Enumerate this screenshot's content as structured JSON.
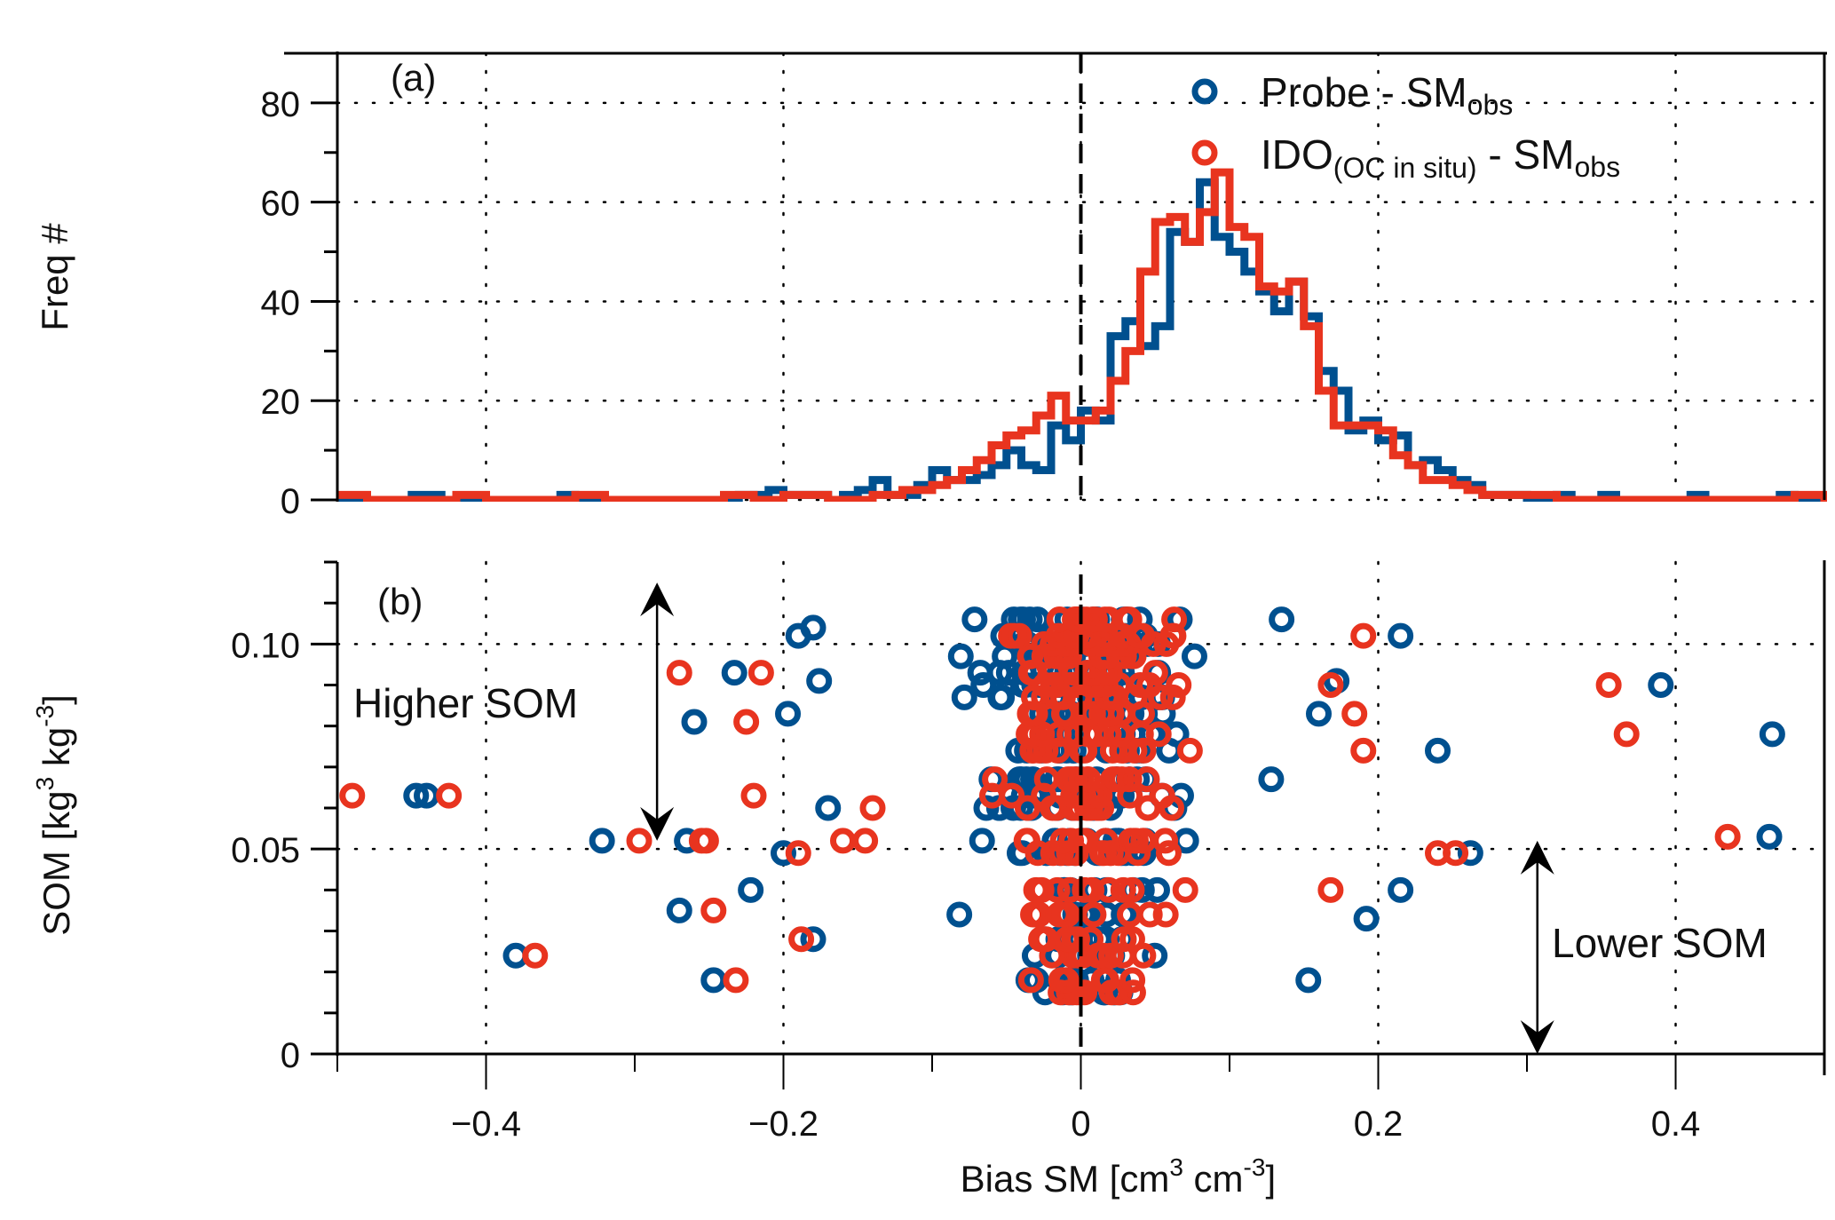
{
  "chart_data": [
    {
      "panel": "a",
      "type": "line",
      "subtype": "step-histogram",
      "panel_label": "(a)",
      "ylabel": "Freq #",
      "xlabel": "",
      "xlim": [
        -0.5,
        0.5
      ],
      "ylim": [
        0,
        90
      ],
      "yticks": [
        0,
        20,
        40,
        60,
        80
      ],
      "ytick_labels": [
        "0",
        "20",
        "40",
        "60",
        "80"
      ],
      "xticks": [
        -0.4,
        -0.2,
        0,
        0.2,
        0.4
      ],
      "grid": "dotted",
      "reference_line": {
        "x": 0,
        "style": "dashed",
        "color": "#000000"
      },
      "legend": {
        "placement": "top-right",
        "entries": [
          {
            "main": "Probe - SM",
            "sub": "obs",
            "sub_prefix": "",
            "color": "#00508f"
          },
          {
            "main": "IDO",
            "sub_prefix": "(OC in situ)",
            "tail": " - SM",
            "sub": "obs",
            "color": "#e8341f"
          }
        ]
      },
      "bin_width": 0.01,
      "bin_start": -0.5,
      "series": [
        {
          "name": "Probe - SMobs",
          "color": "#00508f",
          "counts": [
            0,
            0,
            0,
            0,
            0,
            1,
            1,
            0,
            0,
            0,
            0,
            0,
            0,
            0,
            0,
            1,
            0,
            0,
            0,
            0,
            0,
            0,
            0,
            0,
            0,
            0,
            0,
            1,
            1,
            2,
            1,
            1,
            1,
            0,
            1,
            2,
            4,
            1,
            1,
            3,
            6,
            4,
            4,
            5,
            7,
            10,
            7,
            6,
            15,
            12,
            18,
            16,
            33,
            36,
            31,
            35,
            54,
            52,
            64,
            53,
            50,
            46,
            42,
            38,
            44,
            37,
            26,
            22,
            14,
            16,
            12,
            13,
            7,
            8,
            6,
            4,
            3,
            1,
            1,
            1,
            0,
            0,
            1,
            0,
            0,
            1,
            0,
            0,
            0,
            0,
            0,
            1,
            0,
            0,
            0,
            0,
            0,
            1,
            0,
            0,
            0,
            0,
            0,
            0,
            0,
            1,
            1,
            0,
            0,
            0
          ],
          "note": "approximate counts read from gridlines"
        },
        {
          "name": "IDO(OC in situ) - SMobs",
          "color": "#e8341f",
          "counts": [
            1,
            1,
            0,
            0,
            0,
            0,
            0,
            0,
            1,
            1,
            0,
            0,
            0,
            0,
            0,
            0,
            1,
            1,
            0,
            0,
            0,
            0,
            0,
            0,
            0,
            0,
            1,
            1,
            0,
            0,
            1,
            1,
            1,
            0,
            0,
            0,
            1,
            1,
            2,
            2,
            3,
            4,
            6,
            8,
            11,
            13,
            14,
            17,
            21,
            16,
            16,
            18,
            24,
            30,
            46,
            56,
            57,
            52,
            58,
            66,
            55,
            53,
            43,
            42,
            44,
            35,
            22,
            15,
            15,
            15,
            14,
            9,
            7,
            4,
            4,
            3,
            2,
            1,
            1,
            1,
            1,
            1,
            0,
            0,
            0,
            0,
            0,
            0,
            0,
            0,
            0,
            0,
            0,
            0,
            0,
            0,
            0,
            0,
            1,
            1,
            0,
            0,
            0,
            1,
            1,
            0,
            0,
            0,
            0,
            0
          ],
          "note": "approximate counts read from gridlines"
        }
      ]
    },
    {
      "panel": "b",
      "type": "scatter",
      "panel_label": "(b)",
      "xlabel": "Bias SM [cm3 cm-3]",
      "xlabel_parts": {
        "main": "Bias SM [cm",
        "sup1": "3",
        "mid": " cm",
        "sup2": "-3",
        "end": "]"
      },
      "ylabel": "SOM [kg3 kg-3]",
      "ylabel_parts": {
        "main": "SOM [kg",
        "sup1": "3",
        "mid": " kg",
        "sup2": "-3",
        "end": "]"
      },
      "xlim": [
        -0.5,
        0.5
      ],
      "ylim": [
        0,
        0.12
      ],
      "xticks": [
        -0.4,
        -0.2,
        0,
        0.2,
        0.4
      ],
      "xtick_labels": [
        "−0.4",
        "−0.2",
        "0",
        "0.2",
        "0.4"
      ],
      "yticks": [
        0,
        0.05,
        0.1
      ],
      "ytick_labels": [
        "0",
        "0.05",
        "0.10"
      ],
      "grid": "dotted",
      "reference_line": {
        "x": 0,
        "style": "dashed",
        "color": "#000000"
      },
      "annotations": [
        {
          "text": "Higher SOM",
          "arrow": "double",
          "x": -0.285,
          "y_from": 0.052,
          "y_to": 0.115
        },
        {
          "text": "Lower SOM",
          "arrow": "double",
          "x": 0.307,
          "y_from": 0.0,
          "y_to": 0.052
        }
      ],
      "som_levels": [
        0.015,
        0.018,
        0.024,
        0.028,
        0.034,
        0.04,
        0.049,
        0.052,
        0.06,
        0.063,
        0.067,
        0.074,
        0.078,
        0.083,
        0.087,
        0.09,
        0.093,
        0.097,
        0.1,
        0.102,
        0.106
      ],
      "series": [
        {
          "name": "Probe - SMobs",
          "color": "#00508f",
          "outliers": [
            [
              -0.447,
              0.063
            ],
            [
              -0.44,
              0.063
            ],
            [
              -0.38,
              0.024
            ],
            [
              -0.322,
              0.052
            ],
            [
              -0.27,
              0.035
            ],
            [
              -0.26,
              0.081
            ],
            [
              -0.247,
              0.018
            ],
            [
              -0.233,
              0.093
            ],
            [
              -0.222,
              0.04
            ],
            [
              -0.2,
              0.049
            ],
            [
              -0.197,
              0.083
            ],
            [
              -0.19,
              0.102
            ],
            [
              -0.18,
              0.104
            ],
            [
              -0.18,
              0.028
            ],
            [
              -0.17,
              0.06
            ],
            [
              -0.176,
              0.091
            ],
            [
              -0.265,
              0.052
            ],
            [
              0.215,
              0.102
            ],
            [
              0.24,
              0.074
            ],
            [
              0.262,
              0.049
            ],
            [
              0.192,
              0.033
            ],
            [
              0.215,
              0.04
            ],
            [
              0.39,
              0.09
            ],
            [
              0.465,
              0.078
            ],
            [
              0.463,
              0.053
            ],
            [
              0.172,
              0.091
            ],
            [
              0.16,
              0.083
            ],
            [
              0.153,
              0.018
            ],
            [
              0.135,
              0.106
            ],
            [
              0.128,
              0.067
            ]
          ],
          "cloud": {
            "x_range": [
              -0.16,
              0.16
            ],
            "som_range": [
              0.015,
              0.106
            ],
            "spread": "dense, centered near 0"
          }
        },
        {
          "name": "IDO(OC in situ) - SMobs",
          "color": "#e8341f",
          "outliers": [
            [
              -0.49,
              0.063
            ],
            [
              -0.425,
              0.063
            ],
            [
              -0.367,
              0.024
            ],
            [
              -0.297,
              0.052
            ],
            [
              -0.27,
              0.093
            ],
            [
              -0.255,
              0.052
            ],
            [
              -0.252,
              0.052
            ],
            [
              -0.247,
              0.035
            ],
            [
              -0.232,
              0.018
            ],
            [
              -0.215,
              0.093
            ],
            [
              -0.225,
              0.081
            ],
            [
              -0.22,
              0.063
            ],
            [
              -0.188,
              0.028
            ],
            [
              -0.19,
              0.049
            ],
            [
              -0.16,
              0.052
            ],
            [
              -0.145,
              0.052
            ],
            [
              -0.14,
              0.06
            ],
            [
              0.19,
              0.102
            ],
            [
              0.184,
              0.083
            ],
            [
              0.19,
              0.074
            ],
            [
              0.168,
              0.09
            ],
            [
              0.168,
              0.04
            ],
            [
              0.24,
              0.049
            ],
            [
              0.252,
              0.049
            ],
            [
              0.355,
              0.09
            ],
            [
              0.367,
              0.078
            ],
            [
              0.435,
              0.053
            ]
          ],
          "cloud": {
            "x_range": [
              -0.13,
              0.14
            ],
            "som_range": [
              0.015,
              0.106
            ],
            "spread": "dense, centered near 0"
          }
        }
      ]
    }
  ]
}
